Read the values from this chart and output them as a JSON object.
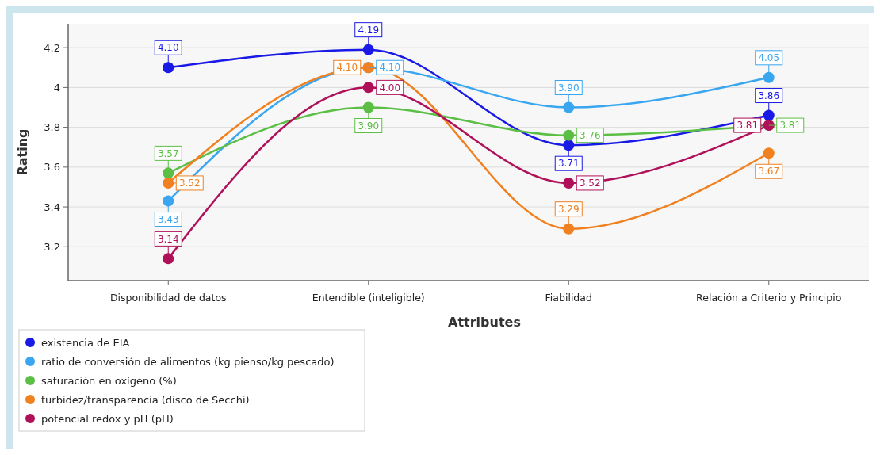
{
  "chart_data": {
    "type": "line",
    "xlabel": "Attributes",
    "ylabel": "Rating",
    "categories": [
      "Disponibilidad de datos",
      "Entendible (inteligible)",
      "Fiabilidad",
      "Relación a Criterio y Principio"
    ],
    "ylim": [
      3.03,
      4.32
    ],
    "yticks": [
      3.2,
      3.4,
      3.6,
      3.8,
      {
        "value": 4,
        "label": "4"
      },
      4.2
    ],
    "grid": "y",
    "legend": "bottom left",
    "marker": "circle",
    "line_style": "solid",
    "series": [
      {
        "name": "existencia de EIA",
        "color": "#1a1ae6",
        "values": [
          4.1,
          4.19,
          3.71,
          3.86
        ],
        "value_labels": [
          "4.10",
          "4.19",
          "3.71",
          "3.86"
        ]
      },
      {
        "name": "ratio de conversión de alimentos (kg pienso/kg pescado)",
        "color": "#3aa6f0",
        "values": [
          3.43,
          4.1,
          3.9,
          4.05
        ],
        "value_labels": [
          "3.43",
          "4.10",
          "3.90",
          "4.05"
        ]
      },
      {
        "name": "saturación en oxígeno (%)",
        "color": "#5cbf45",
        "values": [
          3.57,
          3.9,
          3.76,
          3.81
        ],
        "value_labels": [
          "3.57",
          "3.90",
          "3.76",
          "3.81"
        ]
      },
      {
        "name": "turbidez/transparencia (disco de Secchi)",
        "color": "#f08020",
        "values": [
          3.52,
          4.1,
          3.29,
          3.67
        ],
        "value_labels": [
          "3.52",
          "4.10",
          "3.29",
          "3.67"
        ]
      },
      {
        "name": "potencial redox y pH (pH)",
        "color": "#b0105a",
        "values": [
          3.14,
          4.0,
          3.52,
          3.81
        ],
        "value_labels": [
          "3.14",
          "4.00",
          "3.52",
          "3.81"
        ]
      }
    ]
  }
}
